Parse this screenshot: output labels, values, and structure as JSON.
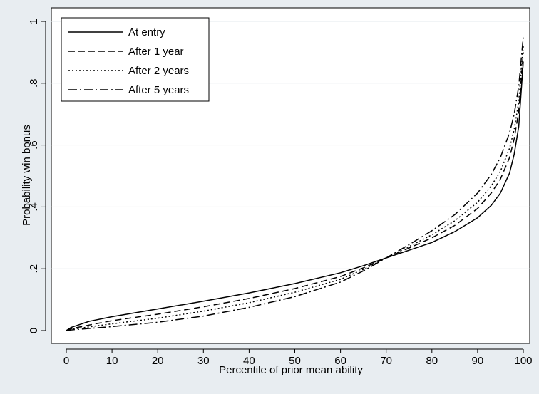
{
  "chart_data": {
    "type": "line",
    "title": "",
    "xlabel": "Percentile of prior mean ability",
    "ylabel": "Probability win bonus",
    "xlim": [
      0,
      100
    ],
    "ylim": [
      0,
      1
    ],
    "xticks": [
      0,
      10,
      20,
      30,
      40,
      50,
      60,
      70,
      80,
      90,
      100
    ],
    "xtick_labels": [
      "0",
      "10",
      "20",
      "30",
      "40",
      "50",
      "60",
      "70",
      "80",
      "90",
      "100"
    ],
    "yticks": [
      0,
      0.2,
      0.4,
      0.6,
      0.8,
      1
    ],
    "ytick_labels": [
      "0",
      ".2",
      ".4",
      ".6",
      ".8",
      "1"
    ],
    "grid": "horizontal",
    "legend_position": "top-left",
    "series": [
      {
        "name": "At entry",
        "style": "solid",
        "x": [
          0,
          1,
          5,
          10,
          20,
          30,
          40,
          50,
          60,
          65,
          70,
          75,
          80,
          85,
          90,
          93,
          95,
          97,
          98,
          99,
          100
        ],
        "y": [
          0.0,
          0.01,
          0.03,
          0.045,
          0.07,
          0.095,
          0.122,
          0.152,
          0.187,
          0.21,
          0.235,
          0.26,
          0.285,
          0.32,
          0.365,
          0.405,
          0.445,
          0.51,
          0.57,
          0.66,
          0.87
        ]
      },
      {
        "name": "After 1 year",
        "style": "dashed",
        "x": [
          0,
          1,
          5,
          10,
          20,
          30,
          40,
          50,
          60,
          65,
          70,
          75,
          80,
          85,
          90,
          93,
          95,
          97,
          98,
          99,
          100
        ],
        "y": [
          0.0,
          0.006,
          0.018,
          0.032,
          0.053,
          0.077,
          0.104,
          0.136,
          0.175,
          0.203,
          0.235,
          0.267,
          0.3,
          0.34,
          0.395,
          0.445,
          0.49,
          0.56,
          0.62,
          0.71,
          0.9
        ]
      },
      {
        "name": "After 2 years",
        "style": "dotted",
        "x": [
          0,
          1,
          5,
          10,
          20,
          30,
          40,
          50,
          60,
          65,
          70,
          75,
          80,
          85,
          90,
          93,
          95,
          97,
          98,
          99,
          100
        ],
        "y": [
          0.0,
          0.004,
          0.012,
          0.022,
          0.04,
          0.063,
          0.09,
          0.124,
          0.166,
          0.198,
          0.235,
          0.272,
          0.31,
          0.355,
          0.415,
          0.468,
          0.515,
          0.59,
          0.65,
          0.74,
          0.92
        ]
      },
      {
        "name": "After 5 years",
        "style": "dashdot",
        "x": [
          0,
          1,
          5,
          10,
          20,
          30,
          40,
          50,
          60,
          65,
          70,
          75,
          80,
          85,
          90,
          93,
          95,
          97,
          98,
          99,
          100
        ],
        "y": [
          0.0,
          0.002,
          0.007,
          0.013,
          0.027,
          0.047,
          0.075,
          0.11,
          0.157,
          0.193,
          0.235,
          0.278,
          0.323,
          0.375,
          0.445,
          0.505,
          0.56,
          0.64,
          0.7,
          0.79,
          0.95
        ]
      }
    ]
  }
}
